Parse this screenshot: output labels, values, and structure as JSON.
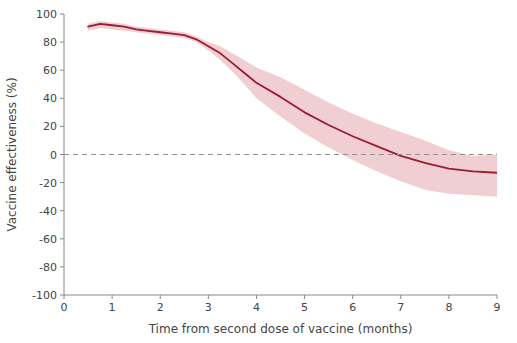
{
  "chart_data": {
    "type": "line",
    "xlabel": "Time from second dose of vaccine (months)",
    "ylabel": "Vaccine effectiveness (%)",
    "x": [
      0.5,
      0.75,
      1.0,
      1.25,
      1.5,
      1.75,
      2.0,
      2.25,
      2.5,
      2.75,
      3.0,
      3.25,
      3.5,
      3.75,
      4.0,
      4.5,
      5.0,
      5.5,
      6.0,
      6.5,
      7.0,
      7.5,
      8.0,
      8.5,
      9.0
    ],
    "series": [
      {
        "type": "area",
        "color": "#d9848e",
        "lower": [
          88,
          90,
          89,
          88,
          87,
          86,
          85,
          84,
          83,
          80,
          74,
          67,
          59,
          50,
          40,
          27,
          15,
          5,
          -4,
          -12,
          -19,
          -25,
          -28,
          -29,
          -30
        ],
        "upper": [
          93,
          95,
          94,
          93,
          91,
          90,
          89,
          88,
          87,
          84,
          80,
          77,
          72,
          67,
          62,
          55,
          46,
          37,
          29,
          22,
          16,
          10,
          3,
          -1,
          0
        ]
      },
      {
        "type": "line",
        "color": "#9b1c31",
        "values": [
          91,
          93,
          92,
          91,
          89,
          88,
          87,
          86,
          85,
          82,
          77,
          72,
          65,
          58,
          51,
          41,
          30,
          21,
          13,
          6,
          -1,
          -6,
          -10,
          -12,
          -13
        ]
      }
    ],
    "reference_line": {
      "value": 0,
      "color": "#909090",
      "line_style": "dashed"
    },
    "xlim": [
      0,
      9
    ],
    "ylim": [
      -100,
      100
    ],
    "xticks": [
      0,
      1,
      2,
      3,
      4,
      5,
      6,
      7,
      8,
      9
    ],
    "yticks": [
      -100,
      -80,
      -60,
      -40,
      -20,
      0,
      20,
      40,
      60,
      80,
      100
    ],
    "grid": false
  }
}
